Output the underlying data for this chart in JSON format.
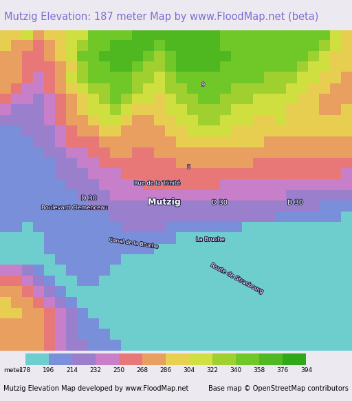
{
  "title": "Mutzig Elevation: 187 meter Map by www.FloodMap.net (beta)",
  "title_color": "#7b6fd0",
  "title_fontsize": 10.5,
  "background_color": "#ede9f0",
  "colorbar_meters": [
    178,
    196,
    214,
    232,
    250,
    268,
    286,
    304,
    322,
    340,
    358,
    376,
    394
  ],
  "colorbar_colors": [
    "#6ecece",
    "#7b8fdb",
    "#9b7fcc",
    "#c87fc8",
    "#e87878",
    "#e8a060",
    "#e8d050",
    "#d0e040",
    "#a0d030",
    "#70c828",
    "#50b820",
    "#30a818",
    "#208010"
  ],
  "footer_left": "Mutzig Elevation Map developed by www.FloodMap.net",
  "footer_right": "Base map © OpenStreetMap contributors",
  "footer_fontsize": 7
}
